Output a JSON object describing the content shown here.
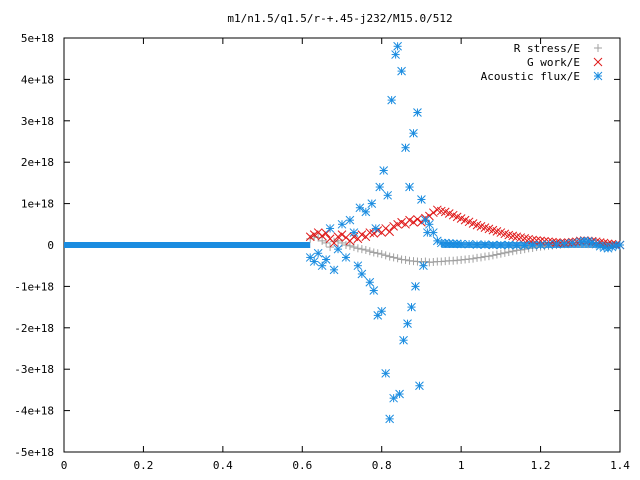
{
  "chart_data": {
    "type": "scatter",
    "title": "m1/n1.5/q1.5/r-+.45-j232/M15.0/512",
    "xlabel": "",
    "ylabel": "",
    "xlim": [
      0,
      1.4
    ],
    "ylim": [
      -5e+18,
      5e+18
    ],
    "xticks": [
      0,
      0.2,
      0.4,
      0.6,
      0.8,
      1,
      1.2,
      1.4
    ],
    "xtick_labels": [
      "0",
      "0.2",
      "0.4",
      "0.6",
      "0.8",
      "1",
      "1.2",
      "1.4"
    ],
    "yticks": [
      -5e+18,
      -4e+18,
      -3e+18,
      -2e+18,
      -1e+18,
      0,
      1e+18,
      2e+18,
      3e+18,
      4e+18,
      5e+18
    ],
    "ytick_labels": [
      "-5e+18",
      "-4e+18",
      "-3e+18",
      "-2e+18",
      "-1e+18",
      "0",
      "1e+18",
      "2e+18",
      "3e+18",
      "4e+18",
      "5e+18"
    ],
    "grid": false,
    "legend_position": "top-right",
    "series": [
      {
        "name": "R stress/E",
        "marker": "plus",
        "color": "#a0a0a0",
        "points": [
          [
            0.62,
            1.5e+17
          ],
          [
            0.63,
            2e+17
          ],
          [
            0.64,
            1.8e+17
          ],
          [
            0.65,
            1e+17
          ],
          [
            0.66,
            5e+16
          ],
          [
            0.67,
            -5e+16
          ],
          [
            0.68,
            8e+16
          ],
          [
            0.69,
            1e+17
          ],
          [
            0.7,
            5e+16
          ],
          [
            0.71,
            0.0
          ],
          [
            0.72,
            -2e+16
          ],
          [
            0.73,
            -5e+16
          ],
          [
            0.74,
            -8e+16
          ],
          [
            0.75,
            -1e+17
          ],
          [
            0.76,
            -1.2e+17
          ],
          [
            0.77,
            -1.5e+17
          ],
          [
            0.78,
            -1.8e+17
          ],
          [
            0.79,
            -2e+17
          ],
          [
            0.8,
            -2.2e+17
          ],
          [
            0.81,
            -2.5e+17
          ],
          [
            0.82,
            -2.8e+17
          ],
          [
            0.83,
            -3e+17
          ],
          [
            0.84,
            -3.2e+17
          ],
          [
            0.85,
            -3.5e+17
          ],
          [
            0.86,
            -3.6e+17
          ],
          [
            0.87,
            -3.8e+17
          ],
          [
            0.88,
            -3.9e+17
          ],
          [
            0.89,
            -4e+17
          ],
          [
            0.9,
            -4.1e+17
          ],
          [
            0.91,
            -4e+17
          ],
          [
            0.92,
            -4.2e+17
          ],
          [
            0.93,
            -4.1e+17
          ],
          [
            0.94,
            -4e+17
          ],
          [
            0.95,
            -4e+17
          ],
          [
            0.96,
            -3.9e+17
          ],
          [
            0.97,
            -3.8e+17
          ],
          [
            0.98,
            -3.8e+17
          ],
          [
            0.99,
            -3.7e+17
          ],
          [
            1.0,
            -3.6e+17
          ],
          [
            1.01,
            -3.5e+17
          ],
          [
            1.02,
            -3.4e+17
          ],
          [
            1.03,
            -3.3e+17
          ],
          [
            1.04,
            -3.1e+17
          ],
          [
            1.05,
            -3e+17
          ],
          [
            1.06,
            -2.8e+17
          ],
          [
            1.07,
            -2.7e+17
          ],
          [
            1.08,
            -2.5e+17
          ],
          [
            1.09,
            -2.3e+17
          ],
          [
            1.1,
            -2.1e+17
          ],
          [
            1.11,
            -1.9e+17
          ],
          [
            1.12,
            -1.7e+17
          ],
          [
            1.13,
            -1.5e+17
          ],
          [
            1.14,
            -1.3e+17
          ],
          [
            1.15,
            -1.2e+17
          ],
          [
            1.16,
            -1e+17
          ],
          [
            1.17,
            -8e+16
          ],
          [
            1.18,
            -7e+16
          ],
          [
            1.19,
            -5e+16
          ],
          [
            1.2,
            -4e+16
          ],
          [
            1.21,
            -3e+16
          ],
          [
            1.22,
            -2e+16
          ],
          [
            1.23,
            -1e+16
          ],
          [
            1.24,
            0.0
          ],
          [
            1.25,
            1e+16
          ],
          [
            1.26,
            2e+16
          ],
          [
            1.27,
            2e+16
          ],
          [
            1.28,
            3e+16
          ],
          [
            1.29,
            3e+16
          ],
          [
            1.3,
            3e+16
          ],
          [
            1.31,
            3e+16
          ],
          [
            1.32,
            2e+16
          ],
          [
            1.33,
            2e+16
          ],
          [
            1.34,
            1e+16
          ],
          [
            1.35,
            1e+16
          ],
          [
            1.36,
            0.0
          ],
          [
            1.37,
            0.0
          ],
          [
            1.38,
            0.0
          ],
          [
            1.39,
            0.0
          ],
          [
            1.4,
            0.0
          ]
        ]
      },
      {
        "name": "G work/E",
        "marker": "cross",
        "color": "#e01818",
        "points": [
          [
            0.62,
            2e+17
          ],
          [
            0.63,
            2.5e+17
          ],
          [
            0.64,
            3e+17
          ],
          [
            0.65,
            2.2e+17
          ],
          [
            0.66,
            2.8e+17
          ],
          [
            0.67,
            1.5e+17
          ],
          [
            0.68,
            5e+16
          ],
          [
            0.69,
            2e+17
          ],
          [
            0.7,
            2.5e+17
          ],
          [
            0.71,
            1.8e+17
          ],
          [
            0.72,
            1e+17
          ],
          [
            0.73,
            2e+17
          ],
          [
            0.74,
            1.5e+17
          ],
          [
            0.75,
            2.5e+17
          ],
          [
            0.76,
            2e+17
          ],
          [
            0.77,
            3e+17
          ],
          [
            0.78,
            2.8e+17
          ],
          [
            0.79,
            3.5e+17
          ],
          [
            0.8,
            3e+17
          ],
          [
            0.81,
            4e+17
          ],
          [
            0.82,
            3.2e+17
          ],
          [
            0.83,
            4.5e+17
          ],
          [
            0.84,
            5e+17
          ],
          [
            0.85,
            5.5e+17
          ],
          [
            0.86,
            5e+17
          ],
          [
            0.87,
            6e+17
          ],
          [
            0.88,
            5.5e+17
          ],
          [
            0.89,
            6.2e+17
          ],
          [
            0.9,
            5.5e+17
          ],
          [
            0.91,
            6.5e+17
          ],
          [
            0.92,
            7e+17
          ],
          [
            0.93,
            7.8e+17
          ],
          [
            0.94,
            8.5e+17
          ],
          [
            0.95,
            8.2e+17
          ],
          [
            0.96,
            8e+17
          ],
          [
            0.97,
            7.6e+17
          ],
          [
            0.98,
            7.2e+17
          ],
          [
            0.99,
            6.8e+17
          ],
          [
            1.0,
            6.4e+17
          ],
          [
            1.01,
            6e+17
          ],
          [
            1.02,
            5.6e+17
          ],
          [
            1.03,
            5.2e+17
          ],
          [
            1.04,
            4.8e+17
          ],
          [
            1.05,
            4.5e+17
          ],
          [
            1.06,
            4.2e+17
          ],
          [
            1.07,
            3.9e+17
          ],
          [
            1.08,
            3.6e+17
          ],
          [
            1.09,
            3.3e+17
          ],
          [
            1.1,
            3e+17
          ],
          [
            1.11,
            2.7e+17
          ],
          [
            1.12,
            2.4e+17
          ],
          [
            1.13,
            2.2e+17
          ],
          [
            1.14,
            2e+17
          ],
          [
            1.15,
            1.8e+17
          ],
          [
            1.16,
            1.6e+17
          ],
          [
            1.17,
            1.4e+17
          ],
          [
            1.18,
            1.2e+17
          ],
          [
            1.19,
            1.1e+17
          ],
          [
            1.2,
            1e+17
          ],
          [
            1.21,
            9e+16
          ],
          [
            1.22,
            8e+16
          ],
          [
            1.23,
            7e+16
          ],
          [
            1.24,
            6e+16
          ],
          [
            1.25,
            5e+16
          ],
          [
            1.26,
            5e+16
          ],
          [
            1.27,
            6e+16
          ],
          [
            1.28,
            7e+16
          ],
          [
            1.29,
            8e+16
          ],
          [
            1.3,
            1e+17
          ],
          [
            1.31,
            1.1e+17
          ],
          [
            1.32,
            1e+17
          ],
          [
            1.33,
            9e+16
          ],
          [
            1.34,
            8e+16
          ],
          [
            1.35,
            6e+16
          ],
          [
            1.36,
            5e+16
          ],
          [
            1.37,
            3e+16
          ],
          [
            1.38,
            2e+16
          ],
          [
            1.39,
            1e+16
          ],
          [
            1.4,
            0.0
          ]
        ]
      },
      {
        "name": "Acoustic flux/E",
        "marker": "star",
        "color": "#1a8ce0",
        "points": [
          [
            0.62,
            -3e+17
          ],
          [
            0.63,
            -4e+17
          ],
          [
            0.64,
            -2e+17
          ],
          [
            0.65,
            -5e+17
          ],
          [
            0.66,
            -3.5e+17
          ],
          [
            0.67,
            4e+17
          ],
          [
            0.68,
            -6e+17
          ],
          [
            0.69,
            -1e+17
          ],
          [
            0.7,
            5e+17
          ],
          [
            0.71,
            -3e+17
          ],
          [
            0.72,
            6e+17
          ],
          [
            0.73,
            3e+17
          ],
          [
            0.74,
            -5e+17
          ],
          [
            0.745,
            9e+17
          ],
          [
            0.75,
            -7e+17
          ],
          [
            0.76,
            8e+17
          ],
          [
            0.77,
            -9e+17
          ],
          [
            0.775,
            1e+18
          ],
          [
            0.78,
            -1.1e+18
          ],
          [
            0.785,
            4e+17
          ],
          [
            0.79,
            -1.7e+18
          ],
          [
            0.795,
            1.4e+18
          ],
          [
            0.8,
            -1.6e+18
          ],
          [
            0.805,
            1.8e+18
          ],
          [
            0.81,
            -3.1e+18
          ],
          [
            0.815,
            1.2e+18
          ],
          [
            0.82,
            -4.2e+18
          ],
          [
            0.825,
            3.5e+18
          ],
          [
            0.83,
            -3.7e+18
          ],
          [
            0.835,
            4.6e+18
          ],
          [
            0.84,
            4.8e+18
          ],
          [
            0.845,
            -3.6e+18
          ],
          [
            0.85,
            4.2e+18
          ],
          [
            0.855,
            -2.3e+18
          ],
          [
            0.86,
            2.35e+18
          ],
          [
            0.865,
            -1.9e+18
          ],
          [
            0.87,
            1.4e+18
          ],
          [
            0.875,
            -1.5e+18
          ],
          [
            0.88,
            2.7e+18
          ],
          [
            0.885,
            -1e+18
          ],
          [
            0.89,
            3.2e+18
          ],
          [
            0.895,
            -3.4e+18
          ],
          [
            0.9,
            1.1e+18
          ],
          [
            0.905,
            -5e+17
          ],
          [
            0.91,
            6e+17
          ],
          [
            0.915,
            3e+17
          ],
          [
            0.92,
            5e+17
          ],
          [
            0.93,
            3e+17
          ],
          [
            0.94,
            1e+17
          ],
          [
            0.95,
            5e+16
          ],
          [
            0.96,
            5e+16
          ],
          [
            0.97,
            4e+16
          ],
          [
            0.98,
            3e+16
          ],
          [
            0.99,
            3e+16
          ],
          [
            1.0,
            2e+16
          ],
          [
            1.02,
            2e+16
          ],
          [
            1.04,
            1e+16
          ],
          [
            1.06,
            1e+16
          ],
          [
            1.08,
            0.0
          ],
          [
            1.1,
            0.0
          ],
          [
            1.12,
            0.0
          ],
          [
            1.14,
            -1e+16
          ],
          [
            1.16,
            -1e+16
          ],
          [
            1.18,
            0.0
          ],
          [
            1.2,
            0.0
          ],
          [
            1.22,
            1e+16
          ],
          [
            1.24,
            2e+16
          ],
          [
            1.26,
            3e+16
          ],
          [
            1.28,
            5e+16
          ],
          [
            1.3,
            8e+16
          ],
          [
            1.31,
            1e+17
          ],
          [
            1.32,
            9e+16
          ],
          [
            1.33,
            6e+16
          ],
          [
            1.34,
            2e+16
          ],
          [
            1.35,
            -3e+16
          ],
          [
            1.36,
            -6e+16
          ],
          [
            1.37,
            -8e+16
          ],
          [
            1.38,
            -5e+16
          ],
          [
            1.39,
            -2e+16
          ],
          [
            1.4,
            0.0
          ]
        ]
      }
    ]
  }
}
